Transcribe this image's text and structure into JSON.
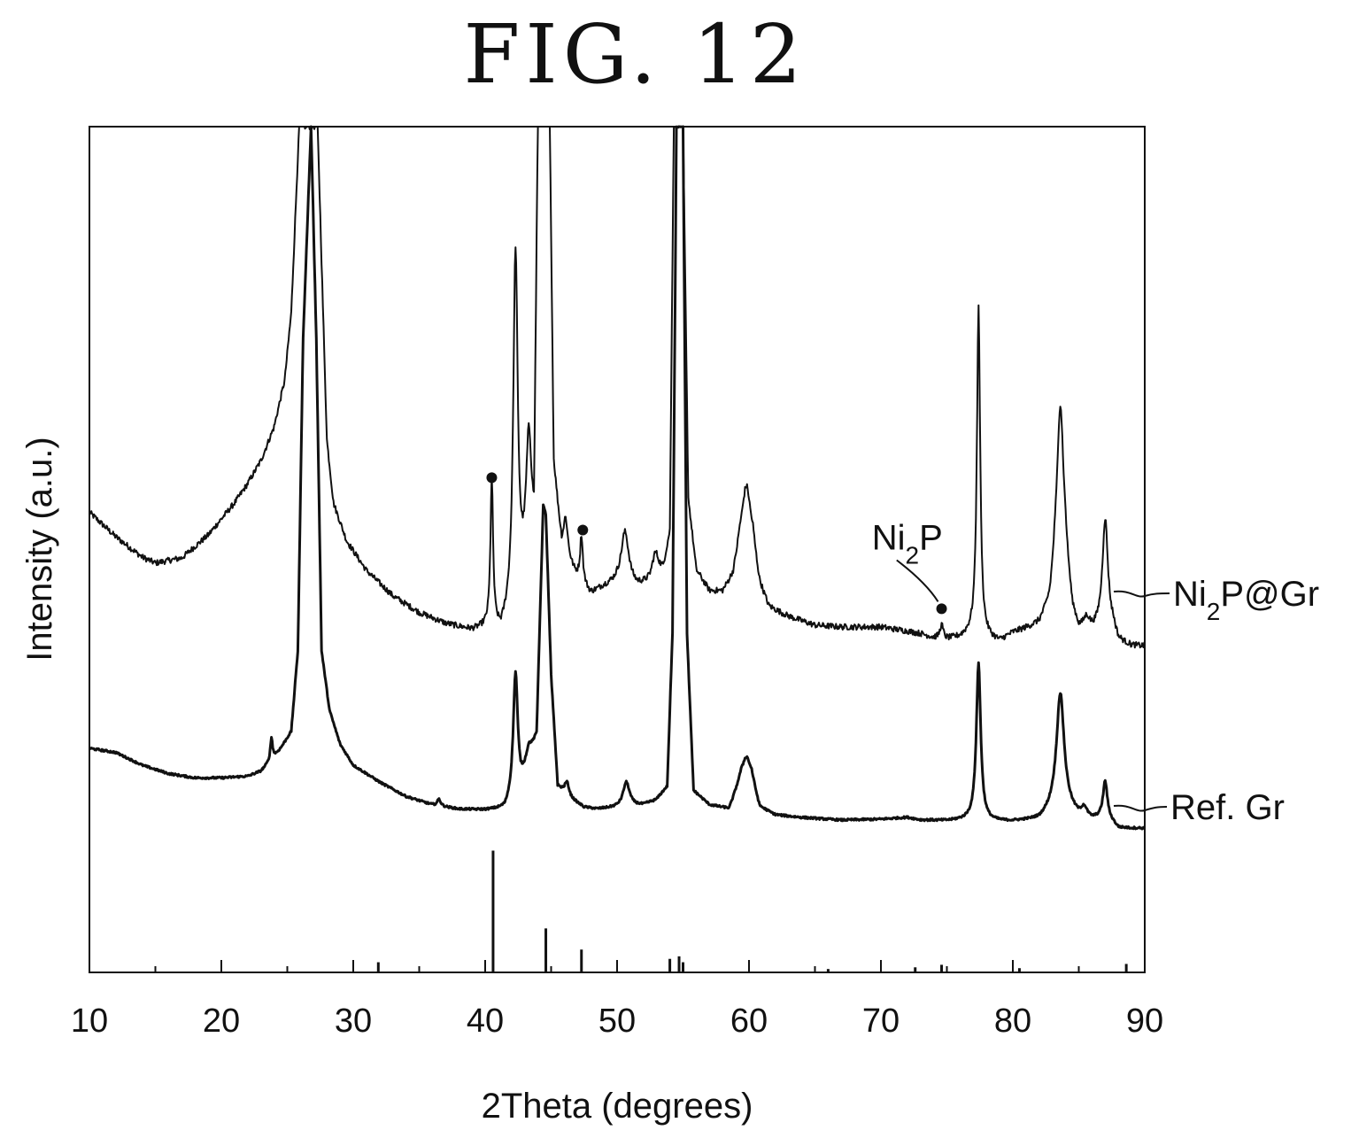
{
  "figure_title": "FIG. 12",
  "chart_data": {
    "type": "line",
    "title": "",
    "xlabel": "2Theta (degrees)",
    "ylabel": "Intensity (a.u.)",
    "xlim": [
      10,
      90
    ],
    "ylim": [
      0,
      100
    ],
    "x_ticks": [
      10,
      20,
      30,
      40,
      50,
      60,
      70,
      80,
      90
    ],
    "y_ticks_shown": false,
    "grid": false,
    "series": [
      {
        "name": "Ni2P@Gr",
        "label_parts": [
          "Ni",
          "2",
          "P@Gr"
        ],
        "color": "#111111",
        "baseline": [
          [
            10,
            54.4
          ],
          [
            12,
            51.5
          ],
          [
            14,
            49.1
          ],
          [
            15,
            48.4
          ],
          [
            17,
            49.0
          ],
          [
            19,
            51.7
          ],
          [
            21,
            55.5
          ],
          [
            22,
            57.8
          ],
          [
            23,
            60.5
          ],
          [
            24,
            64.5
          ],
          [
            24.8,
            70.0
          ],
          [
            25.3,
            78.0
          ],
          [
            25.6,
            89.0
          ],
          [
            25.9,
            100
          ],
          [
            27.3,
            100
          ],
          [
            27.6,
            84.0
          ],
          [
            28.0,
            63.0
          ],
          [
            28.5,
            55.5
          ],
          [
            29.5,
            51.0
          ],
          [
            31,
            47.5
          ],
          [
            33,
            44.5
          ],
          [
            35,
            42.5
          ],
          [
            37,
            41.2
          ],
          [
            39,
            40.4
          ],
          [
            40.2,
            40.7
          ],
          [
            41.2,
            40.0
          ],
          [
            42,
            42.5
          ],
          [
            42.6,
            44.5
          ],
          [
            43.2,
            47.0
          ],
          [
            43.7,
            51.5
          ],
          [
            44.0,
            100
          ],
          [
            44.9,
            100
          ],
          [
            45.2,
            60.0
          ],
          [
            45.8,
            50.0
          ],
          [
            46.8,
            47.0
          ],
          [
            48,
            44.7
          ],
          [
            49,
            45.5
          ],
          [
            50,
            46.0
          ],
          [
            51.5,
            45.5
          ],
          [
            52.5,
            46.0
          ],
          [
            53.5,
            47.5
          ],
          [
            54.0,
            52.0
          ],
          [
            54.3,
            100
          ],
          [
            55.0,
            100
          ],
          [
            55.4,
            56.0
          ],
          [
            56,
            47.5
          ],
          [
            57,
            45.0
          ],
          [
            58,
            44.8
          ],
          [
            58.8,
            46.5
          ],
          [
            59.3,
            50.0
          ],
          [
            60.3,
            50.0
          ],
          [
            60.8,
            45.5
          ],
          [
            61.5,
            43.0
          ],
          [
            63,
            42.0
          ],
          [
            65,
            41.0
          ],
          [
            67,
            40.8
          ],
          [
            70,
            40.8
          ],
          [
            72,
            40.3
          ],
          [
            73,
            40.0
          ],
          [
            74,
            39.5
          ],
          [
            75,
            39.3
          ],
          [
            76,
            39.5
          ],
          [
            77,
            40.0
          ],
          [
            77.8,
            39.5
          ],
          [
            79,
            39.0
          ],
          [
            80,
            40.0
          ],
          [
            81,
            40.5
          ],
          [
            82,
            41.0
          ],
          [
            82.8,
            43.0
          ],
          [
            83.2,
            47.0
          ],
          [
            84.0,
            47.5
          ],
          [
            84.5,
            42.0
          ],
          [
            85,
            40.0
          ],
          [
            86,
            40.0
          ],
          [
            86.5,
            40.5
          ],
          [
            87.6,
            40.5
          ],
          [
            88,
            39.0
          ],
          [
            89,
            38.5
          ],
          [
            90,
            38.5
          ]
        ],
        "peaks": [
          {
            "x": 40.5,
            "height": 58.0,
            "width": 0.12
          },
          {
            "x": 42.3,
            "height": 85.0,
            "width": 0.2
          },
          {
            "x": 43.3,
            "height": 63.0,
            "width": 0.25
          },
          {
            "x": 46.1,
            "height": 53.5,
            "width": 0.2
          },
          {
            "x": 47.3,
            "height": 51.5,
            "width": 0.12
          },
          {
            "x": 50.6,
            "height": 52.0,
            "width": 0.35
          },
          {
            "x": 52.9,
            "height": 49.5,
            "width": 0.3
          },
          {
            "x": 59.8,
            "height": 57.5,
            "width": 0.4
          },
          {
            "x": 74.6,
            "height": 41.0,
            "width": 0.15
          },
          {
            "x": 77.4,
            "height": 78.5,
            "width": 0.15
          },
          {
            "x": 83.6,
            "height": 67.0,
            "width": 0.3
          },
          {
            "x": 85.6,
            "height": 41.5,
            "width": 0.3
          },
          {
            "x": 87.0,
            "height": 53.5,
            "width": 0.25
          }
        ],
        "noise": 0.35
      },
      {
        "name": "Ref. Gr",
        "color": "#111111",
        "baseline": [
          [
            10,
            26.5
          ],
          [
            12,
            26.0
          ],
          [
            14,
            24.5
          ],
          [
            16,
            23.5
          ],
          [
            18,
            23.0
          ],
          [
            20,
            23.0
          ],
          [
            22,
            23.2
          ],
          [
            23,
            23.8
          ],
          [
            24,
            25.5
          ],
          [
            24.5,
            26.5
          ],
          [
            25.3,
            28.5
          ],
          [
            25.8,
            38.0
          ],
          [
            26.2,
            75.0
          ],
          [
            26.8,
            100
          ],
          [
            27.2,
            75.0
          ],
          [
            27.6,
            38.0
          ],
          [
            28.2,
            31.0
          ],
          [
            29,
            27.0
          ],
          [
            30,
            24.5
          ],
          [
            32,
            22.5
          ],
          [
            34,
            20.8
          ],
          [
            36,
            19.8
          ],
          [
            38,
            19.3
          ],
          [
            40,
            19.2
          ],
          [
            41.5,
            19.3
          ],
          [
            42.2,
            21.0
          ],
          [
            42.7,
            22.0
          ],
          [
            43.3,
            25.0
          ],
          [
            43.9,
            28.0
          ],
          [
            44.4,
            55.0
          ],
          [
            44.6,
            54.0
          ],
          [
            45.0,
            35.0
          ],
          [
            45.5,
            22.0
          ],
          [
            46.5,
            20.5
          ],
          [
            47.5,
            19.5
          ],
          [
            48.5,
            19.3
          ],
          [
            50,
            19.5
          ],
          [
            52,
            19.8
          ],
          [
            53,
            20.5
          ],
          [
            53.8,
            22.0
          ],
          [
            54.2,
            40.0
          ],
          [
            54.5,
            100
          ],
          [
            55.0,
            100
          ],
          [
            55.3,
            40.0
          ],
          [
            55.8,
            21.5
          ],
          [
            57,
            19.8
          ],
          [
            58.5,
            19.3
          ],
          [
            59.4,
            23.0
          ],
          [
            60.2,
            23.0
          ],
          [
            60.8,
            19.5
          ],
          [
            62,
            18.6
          ],
          [
            64,
            18.3
          ],
          [
            67,
            18.0
          ],
          [
            70,
            18.1
          ],
          [
            72,
            18.3
          ],
          [
            73,
            18.0
          ],
          [
            75,
            17.9
          ],
          [
            77,
            18.0
          ],
          [
            78,
            17.8
          ],
          [
            80,
            17.8
          ],
          [
            82,
            18.0
          ],
          [
            83,
            19.0
          ],
          [
            84.2,
            19.0
          ],
          [
            85,
            18.3
          ],
          [
            86,
            18.0
          ],
          [
            87,
            18.2
          ],
          [
            87.6,
            17.6
          ],
          [
            88,
            17.0
          ],
          [
            89,
            17.0
          ],
          [
            90,
            17.0
          ]
        ],
        "peaks": [
          {
            "x": 23.8,
            "height": 27.8,
            "width": 0.1
          },
          {
            "x": 36.5,
            "height": 20.5,
            "width": 0.15
          },
          {
            "x": 42.3,
            "height": 35.5,
            "width": 0.2
          },
          {
            "x": 43.3,
            "height": 26.5,
            "width": 0.25
          },
          {
            "x": 46.2,
            "height": 22.5,
            "width": 0.2
          },
          {
            "x": 50.7,
            "height": 22.5,
            "width": 0.3
          },
          {
            "x": 52.8,
            "height": 20.3,
            "width": 0.3
          },
          {
            "x": 59.8,
            "height": 25.5,
            "width": 0.35
          },
          {
            "x": 77.4,
            "height": 36.5,
            "width": 0.2
          },
          {
            "x": 83.6,
            "height": 33.0,
            "width": 0.35
          },
          {
            "x": 85.4,
            "height": 19.3,
            "width": 0.25
          },
          {
            "x": 87.0,
            "height": 22.5,
            "width": 0.2
          }
        ],
        "noise": 0.12
      }
    ],
    "reference_sticks": [
      {
        "x": 31.9,
        "height": 1.2
      },
      {
        "x": 40.6,
        "height": 14.4
      },
      {
        "x": 44.6,
        "height": 5.2
      },
      {
        "x": 47.3,
        "height": 2.7
      },
      {
        "x": 54.0,
        "height": 1.6
      },
      {
        "x": 54.7,
        "height": 1.9
      },
      {
        "x": 55.0,
        "height": 1.2
      },
      {
        "x": 66.0,
        "height": 0.4
      },
      {
        "x": 72.6,
        "height": 0.6
      },
      {
        "x": 74.6,
        "height": 0.9
      },
      {
        "x": 80.5,
        "height": 0.5
      },
      {
        "x": 88.6,
        "height": 1.0
      }
    ],
    "markers": [
      {
        "x": 40.5,
        "y": 58.5
      },
      {
        "x": 47.4,
        "y": 52.3
      },
      {
        "x": 74.6,
        "y": 43.0
      }
    ],
    "annotations": [
      {
        "text_parts": [
          "Ni",
          "2",
          "P"
        ],
        "x": 72.0,
        "y": 50.0,
        "points_to": {
          "x": 74.6,
          "y": 43.0
        }
      }
    ]
  }
}
